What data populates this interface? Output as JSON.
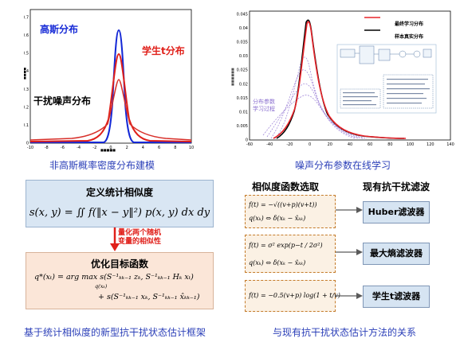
{
  "top_left": {
    "labels": {
      "gaussian": "高斯分布",
      "student_t": "学生t分布",
      "noise": "干扰噪声分布"
    },
    "caption": "非高斯概率密度分布建模",
    "x_ticks": [
      "-10",
      "-8",
      "-6",
      "-4",
      "-2",
      "0",
      "2",
      "4",
      "6",
      "8",
      "10"
    ],
    "y_ticks": [
      "0",
      "0.1",
      "0.2",
      "0.3",
      "0.4",
      "0.5",
      "0.6",
      "0.7"
    ],
    "colors": {
      "gaussian": "#1428d6",
      "student_t": "#e0201a",
      "noise": "#d8302a"
    }
  },
  "top_right": {
    "legend": {
      "final": "最终学习分布",
      "true": "样本真实分布"
    },
    "annotation": {
      "line1": "分布参数",
      "line2": "学习过程"
    },
    "caption": "噪声分布参数在线学习",
    "x_ticks": [
      "-60",
      "-40",
      "-20",
      "0",
      "20",
      "40",
      "60",
      "80",
      "100",
      "120",
      "140"
    ],
    "y_ticks": [
      "0",
      "0.005",
      "0.01",
      "0.015",
      "0.02",
      "0.025",
      "0.03",
      "0.035",
      "0.04",
      "0.045"
    ],
    "colors": {
      "final": "#e8232a",
      "true": "#000000",
      "process": "#9a7fd6"
    }
  },
  "bottom_left": {
    "box1_title": "定义统计相似度",
    "box1_formula": "s(x, y) = ∬ f(‖x − y‖²) p(x, y) dx dy",
    "arrow_note": {
      "line1": "量化两个随机",
      "line2": "变量的相似性"
    },
    "box2_title": "优化目标函数",
    "box2_line1": "q*(xₜ) = arg max s(S⁻¹ₖₖ₋₁ zₖ, S⁻¹ₖₖ₋₁ Hₖ xₜ)",
    "box2_line1_sub": "q(xₖ)",
    "box2_line2": "+ s(S⁻¹ₖₖ₋₁ xₖ, S⁻¹ₖₖ₋₁ x̂ₖₖ₋₁)",
    "caption": "基于统计相似度的新型抗干扰状态估计框架"
  },
  "bottom_right": {
    "col1_title": "相似度函数选取",
    "col2_title": "现有抗干扰滤波",
    "rows": [
      {
        "f": "f(t) = −√((v+p)(v+t))",
        "q": "q(xₖ) ⇔ δ(xₖ − x̂ₖₖ)",
        "filter": "Huber滤波器"
      },
      {
        "f": "f(t) = σ² exp(p−t / 2σ²)",
        "q": "q(xₖ) ⇔ δ(xₖ − x̂ₖₖ)",
        "filter": "最大熵滤波器"
      },
      {
        "f": "f(t) = −0.5(v+p) log(1 + t/v)",
        "q": "",
        "filter": "学生t滤波器"
      }
    ],
    "caption": "与现有抗干扰状态估计方法的关系"
  }
}
